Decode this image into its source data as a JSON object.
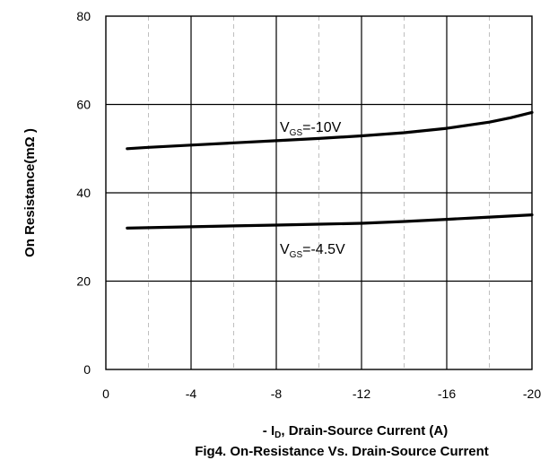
{
  "chart_data": {
    "type": "line",
    "ylabel": "On Resistance(mΩ )",
    "xlabel": {
      "prefix": "- I",
      "sub": "D",
      "suffix": ", Drain-Source Current (A)"
    },
    "title": "Fig4. On-Resistance Vs. Drain-Source Current",
    "x_ticks": [
      "0",
      "-4",
      "-8",
      "-12",
      "-16",
      "-20"
    ],
    "y_ticks": [
      "0",
      "20",
      "40",
      "60",
      "80"
    ],
    "xlim": [
      0,
      -20
    ],
    "ylim": [
      0,
      80
    ],
    "grid": {
      "major": "solid",
      "minor_x": "dashed"
    },
    "series": [
      {
        "label": {
          "main": "V",
          "sub": "GS",
          "suffix": "=-10V"
        },
        "x": [
          -1,
          -2,
          -4,
          -6,
          -8,
          -10,
          -12,
          -14,
          -16,
          -18,
          -19,
          -20
        ],
        "y": [
          50,
          50.3,
          50.8,
          51.3,
          51.8,
          52.3,
          52.9,
          53.6,
          54.6,
          56.0,
          57.0,
          58.2
        ]
      },
      {
        "label": {
          "main": "V",
          "sub": "GS",
          "suffix": "=-4.5V"
        },
        "x": [
          -1,
          -2,
          -4,
          -6,
          -8,
          -10,
          -12,
          -14,
          -16,
          -18,
          -20
        ],
        "y": [
          32,
          32.1,
          32.3,
          32.5,
          32.7,
          32.9,
          33.1,
          33.5,
          34.0,
          34.5,
          35.0
        ]
      }
    ],
    "colors": {
      "line": "#000000",
      "grid": "#000000",
      "minor_grid": "#bfbfbf"
    }
  }
}
